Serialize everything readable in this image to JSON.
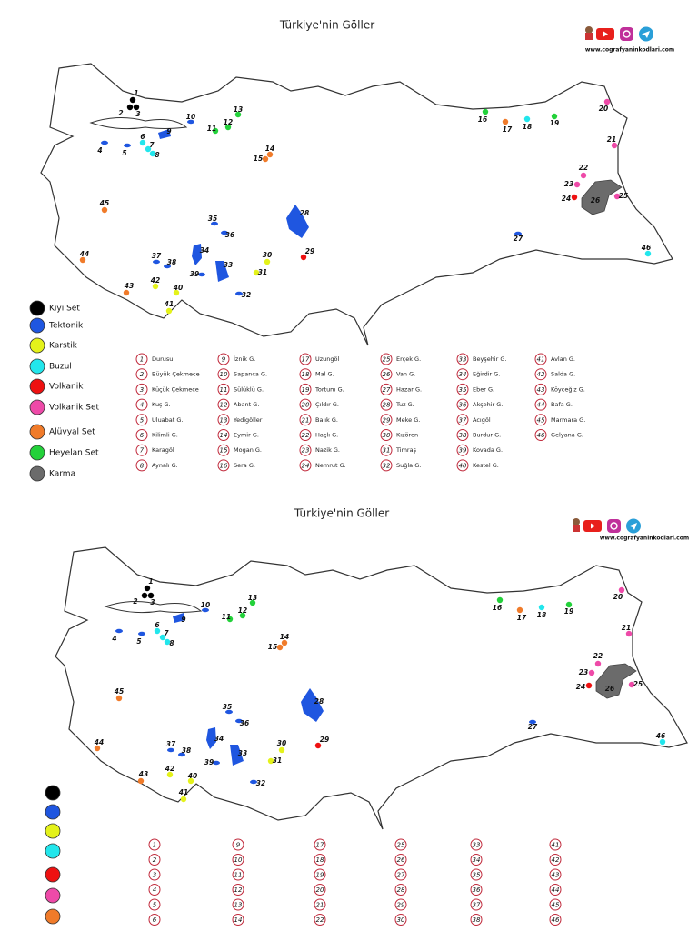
{
  "title": "Türkiye'nin Göller",
  "website": "www.cografyaninkodlari.com",
  "legend": [
    {
      "label": "Kıyı Set",
      "color": "#000000"
    },
    {
      "label": "Tektonik",
      "color": "#1f56e0"
    },
    {
      "label": "Karstik",
      "color": "#e4f21a"
    },
    {
      "label": "Buzul",
      "color": "#22e6ec"
    },
    {
      "label": "Volkanik",
      "color": "#ee1111"
    },
    {
      "label": "Volkanik Set",
      "color": "#ee4aa8"
    },
    {
      "label": "Alüvyal Set",
      "color": "#f07b2a"
    },
    {
      "label": "Heyelan Set",
      "color": "#23d13a"
    },
    {
      "label": "Karma",
      "color": "#6b6b6b"
    }
  ],
  "lakes": [
    {
      "number": "1",
      "name": "Durusu",
      "color": "#000000"
    },
    {
      "number": "2",
      "name": "Büyük Çekmece",
      "color": "#000000"
    },
    {
      "number": "3",
      "name": "Küçük Çekmece",
      "color": "#000000"
    },
    {
      "number": "4",
      "name": "Kuş G.",
      "color": "#1f56e0"
    },
    {
      "number": "5",
      "name": "Uluabat G.",
      "color": "#1f56e0"
    },
    {
      "number": "6",
      "name": "Kilimli G.",
      "color": "#22e6ec"
    },
    {
      "number": "7",
      "name": "Karagöl",
      "color": "#22e6ec"
    },
    {
      "number": "8",
      "name": "Aynalı G.",
      "color": "#22e6ec"
    },
    {
      "number": "9",
      "name": "İznik G.",
      "color": "#1f56e0"
    },
    {
      "number": "10",
      "name": "Sapanca G.",
      "color": "#1f56e0"
    },
    {
      "number": "11",
      "name": "Sülüklü G.",
      "color": "#23d13a"
    },
    {
      "number": "12",
      "name": "Abant G.",
      "color": "#23d13a"
    },
    {
      "number": "13",
      "name": "Yedigöller",
      "color": "#23d13a"
    },
    {
      "number": "14",
      "name": "Eymir G.",
      "color": "#f07b2a"
    },
    {
      "number": "15",
      "name": "Mogan G.",
      "color": "#f07b2a"
    },
    {
      "number": "16",
      "name": "Sera G.",
      "color": "#23d13a"
    },
    {
      "number": "17",
      "name": "Uzungöl",
      "color": "#f07b2a"
    },
    {
      "number": "18",
      "name": "Mal G.",
      "color": "#22e6ec"
    },
    {
      "number": "19",
      "name": "Tortum G.",
      "color": "#23d13a"
    },
    {
      "number": "20",
      "name": "Çıldır G.",
      "color": "#ee4aa8"
    },
    {
      "number": "21",
      "name": "Balık G.",
      "color": "#ee4aa8"
    },
    {
      "number": "22",
      "name": "Haçlı G.",
      "color": "#ee4aa8"
    },
    {
      "number": "23",
      "name": "Nazik G.",
      "color": "#ee4aa8"
    },
    {
      "number": "24",
      "name": "Nemrut G.",
      "color": "#ee1111"
    },
    {
      "number": "25",
      "name": "Erçek G.",
      "color": "#ee4aa8"
    },
    {
      "number": "26",
      "name": "Van G.",
      "color": "#6b6b6b"
    },
    {
      "number": "27",
      "name": "Hazar G.",
      "color": "#1f56e0"
    },
    {
      "number": "28",
      "name": "Tuz G.",
      "color": "#1f56e0"
    },
    {
      "number": "29",
      "name": "Meke G.",
      "color": "#ee1111"
    },
    {
      "number": "30",
      "name": "Kızören",
      "color": "#e4f21a"
    },
    {
      "number": "31",
      "name": "Timraş",
      "color": "#e4f21a"
    },
    {
      "number": "32",
      "name": "Suğla G.",
      "color": "#1f56e0"
    },
    {
      "number": "33",
      "name": "Beyşehir G.",
      "color": "#1f56e0"
    },
    {
      "number": "34",
      "name": "Eğirdir G.",
      "color": "#1f56e0"
    },
    {
      "number": "35",
      "name": "Eber G.",
      "color": "#1f56e0"
    },
    {
      "number": "36",
      "name": "Akşehir G.",
      "color": "#1f56e0"
    },
    {
      "number": "37",
      "name": "Acıgöl",
      "color": "#1f56e0"
    },
    {
      "number": "38",
      "name": "Burdur G.",
      "color": "#1f56e0"
    },
    {
      "number": "39",
      "name": "Kovada G.",
      "color": "#1f56e0"
    },
    {
      "number": "40",
      "name": "Kestel G.",
      "color": "#e4f21a"
    },
    {
      "number": "41",
      "name": "Avlan G.",
      "color": "#e4f21a"
    },
    {
      "number": "42",
      "name": "Salda G.",
      "color": "#e4f21a"
    },
    {
      "number": "43",
      "name": "Köyceğiz G.",
      "color": "#f07b2a"
    },
    {
      "number": "44",
      "name": "Bafa G.",
      "color": "#f07b2a"
    },
    {
      "number": "45",
      "name": "Marmara G.",
      "color": "#f07b2a"
    },
    {
      "number": "46",
      "name": "Gelyana G.",
      "color": "#22e6ec"
    }
  ]
}
